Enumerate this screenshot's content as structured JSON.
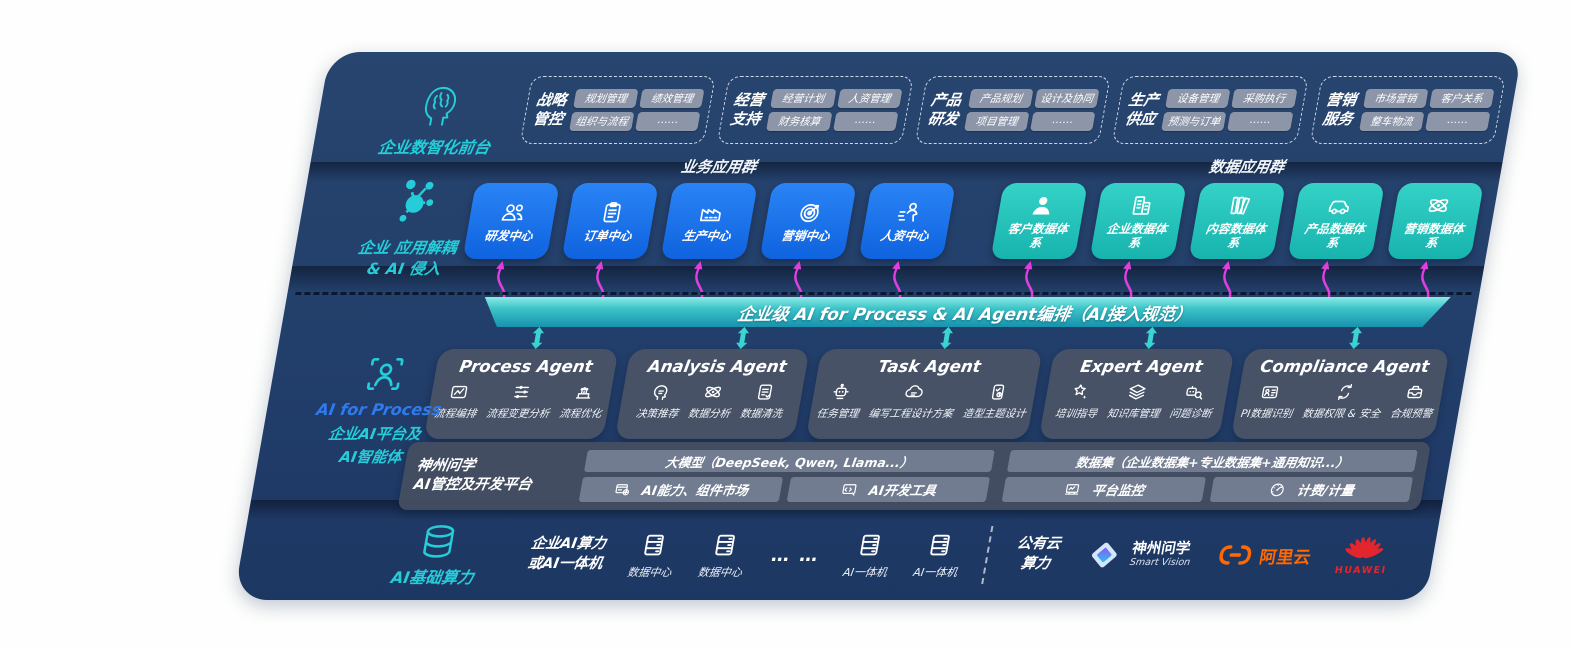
{
  "colors": {
    "navy": "#223e6a",
    "teal_accent": "#25cdd8",
    "blue_box": "#1a74ec",
    "teal_box": "#26c3bb",
    "magenta": "#df3fdf",
    "bar_teal_top": "#8ceae6",
    "bar_teal_bottom": "#1792ad",
    "slate_card": "#4a5466",
    "chip_gray": "#8d96a9",
    "aliyun_orange": "#ff6a00",
    "huawei_red": "#e3262d",
    "process_blue": "#2e7bf0"
  },
  "front_office": {
    "label": "企业数智化前台",
    "groups": [
      {
        "line1": "战略",
        "line2": "管控",
        "chips": [
          {
            "t": "规划管理"
          },
          {
            "t": "绩效管理"
          },
          {
            "t": "组织与流程"
          },
          {
            "t": "……"
          }
        ]
      },
      {
        "line1": "经营",
        "line2": "支持",
        "chips": [
          {
            "t": "经营计划"
          },
          {
            "t": "人资管理"
          },
          {
            "t": "财务核算"
          },
          {
            "t": "……"
          }
        ]
      },
      {
        "line1": "产品",
        "line2": "研发",
        "chips": [
          {
            "t": "产品规划"
          },
          {
            "t": "设计及协同"
          },
          {
            "t": "项目管理"
          },
          {
            "t": "……"
          }
        ]
      },
      {
        "line1": "生产",
        "line2": "供应",
        "chips": [
          {
            "t": "设备管理"
          },
          {
            "t": "采购执行"
          },
          {
            "t": "预测与订单"
          },
          {
            "t": "……"
          }
        ]
      },
      {
        "line1": "营销",
        "line2": "服务",
        "chips": [
          {
            "t": "市场营销"
          },
          {
            "t": "客户关系"
          },
          {
            "t": "整车物流"
          },
          {
            "t": "……"
          }
        ]
      }
    ]
  },
  "apps_layer": {
    "label": "企业 应用解耦\n& AI 侵入",
    "business": {
      "title": "业务应用群",
      "items": [
        {
          "label": "研发中心",
          "icon": "users"
        },
        {
          "label": "订单中心",
          "icon": "clipboard"
        },
        {
          "label": "生产中心",
          "icon": "factory"
        },
        {
          "label": "营销中心",
          "icon": "target"
        },
        {
          "label": "人资中心",
          "icon": "people-motion"
        }
      ]
    },
    "data": {
      "title": "数据应用群",
      "items": [
        {
          "label": "客户数据体系",
          "icon": "person"
        },
        {
          "label": "企业数据体系",
          "icon": "building"
        },
        {
          "label": "内容数据体系",
          "icon": "books"
        },
        {
          "label": "产品数据体系",
          "icon": "car"
        },
        {
          "label": "营销数据体系",
          "icon": "atom"
        }
      ]
    }
  },
  "orchestration": {
    "label": "企业级 AI for Process & AI Agent编排（AI接入规范）"
  },
  "process_layer_label": {
    "en": "AI for Process",
    "line1": "企业AI平台及",
    "line2": "AI智能体"
  },
  "agents": [
    {
      "title": "Process Agent",
      "items": [
        {
          "label": "流程编排",
          "icon": "flow"
        },
        {
          "label": "流程变更分析",
          "icon": "sliders"
        },
        {
          "label": "流程优化",
          "icon": "optimize"
        }
      ]
    },
    {
      "title": "Analysis Agent",
      "items": [
        {
          "label": "决策推荐",
          "icon": "head"
        },
        {
          "label": "数据分析",
          "icon": "atom"
        },
        {
          "label": "数据清洗",
          "icon": "doc"
        }
      ]
    },
    {
      "title": "Task Agent",
      "items": [
        {
          "label": "任务管理",
          "icon": "robot"
        },
        {
          "label": "编写工程设计方案",
          "icon": "cloud"
        },
        {
          "label": "造型主题设计",
          "icon": "tablet"
        }
      ]
    },
    {
      "title": "Expert Agent",
      "items": [
        {
          "label": "培训指导",
          "icon": "training"
        },
        {
          "label": "知识库管理",
          "icon": "layers"
        },
        {
          "label": "问题诊断",
          "icon": "diagnose"
        }
      ]
    },
    {
      "title": "Compliance Agent",
      "items": [
        {
          "label": "PI数据识别",
          "icon": "idcard"
        },
        {
          "label": "数据权限 & 安全",
          "icon": "lock"
        },
        {
          "label": "合规预警",
          "icon": "alert"
        }
      ]
    }
  ],
  "platform": {
    "label_line1": "神州问学",
    "label_line2": "AI管控及开发平台",
    "left": {
      "bar": "大模型（DeepSeek, Qwen, Llama...）",
      "cells": [
        {
          "label": "AI能力、组件市场",
          "icon": "components"
        },
        {
          "label": "AI开发工具",
          "icon": "devtools"
        }
      ]
    },
    "right": {
      "bar": "数据集（企业数据集+专业数据集+通用知识...）",
      "cells": [
        {
          "label": "平台监控",
          "icon": "monitor"
        },
        {
          "label": "计费/计量",
          "icon": "gauge"
        }
      ]
    }
  },
  "compute": {
    "label": "AI基础算力",
    "items": [
      {
        "type": "text2",
        "line1": "企业AI算力",
        "line2": "或AI一体机"
      },
      {
        "type": "icon-label",
        "icon": "server",
        "label": "数据中心"
      },
      {
        "type": "icon-label",
        "icon": "server",
        "label": "数据中心"
      },
      {
        "type": "dots",
        "label": "… …"
      },
      {
        "type": "icon-label",
        "icon": "server",
        "label": "AI一体机"
      },
      {
        "type": "icon-label",
        "icon": "server",
        "label": "AI一体机"
      },
      {
        "type": "divider"
      },
      {
        "type": "text2",
        "line1": "公有云",
        "line2": "算力"
      },
      {
        "type": "logo-szwx",
        "line1": "神州问学",
        "line2": "Smart Vision"
      },
      {
        "type": "logo-aliyun",
        "label": "阿里云"
      },
      {
        "type": "logo-huawei",
        "label": "HUAWEI"
      }
    ]
  }
}
